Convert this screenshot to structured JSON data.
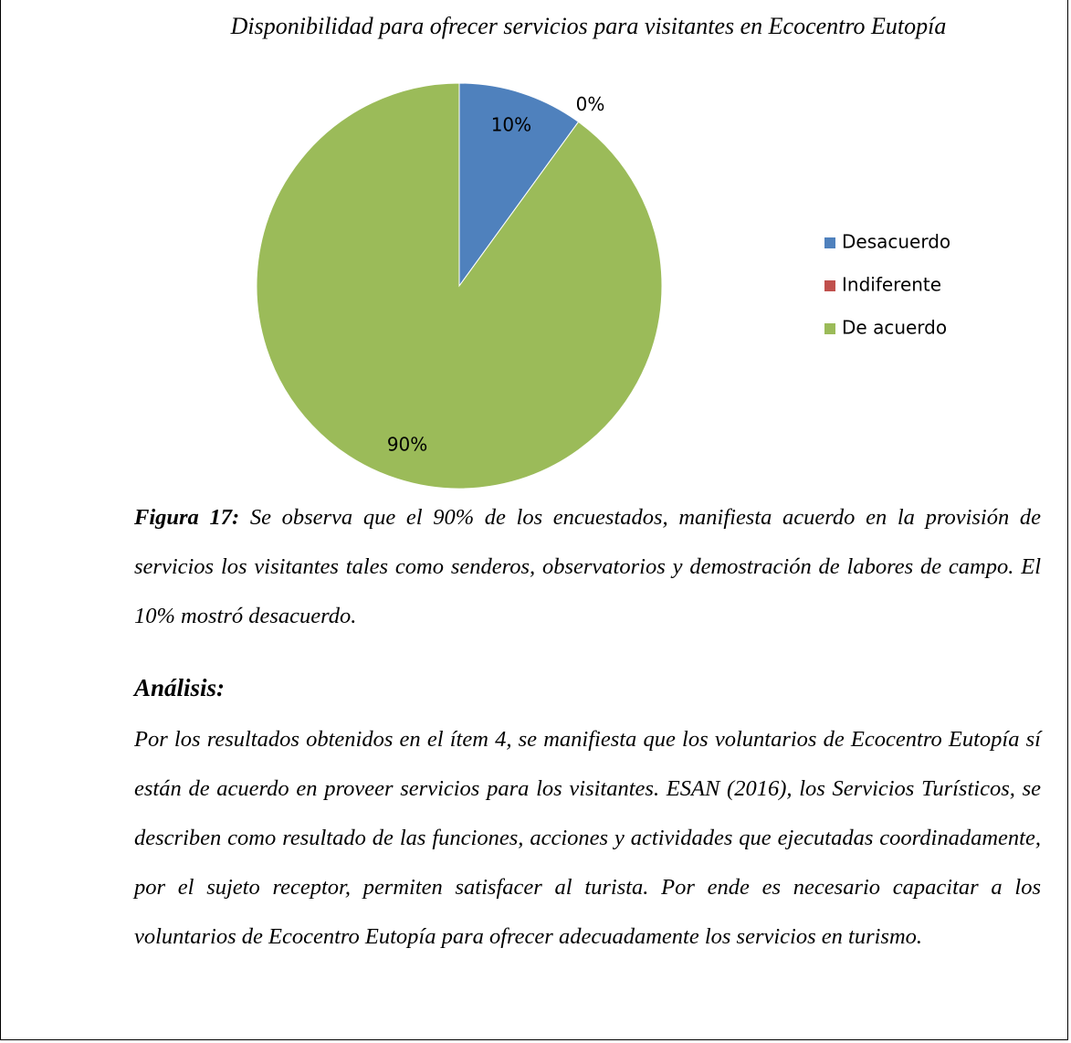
{
  "title": "Disponibilidad para ofrecer servicios para visitantes en Ecocentro Eutopía",
  "chart_data": {
    "type": "pie",
    "categories": [
      "Desacuerdo",
      "Indiferente",
      "De acuerdo"
    ],
    "values": [
      10,
      0,
      90
    ],
    "value_labels": [
      "10%",
      "0%",
      "90%"
    ],
    "colors": [
      "#4f81bd",
      "#c0504d",
      "#9bbb59"
    ]
  },
  "caption": {
    "label": "Figura 17:",
    "text": "Se observa que el 90% de los encuestados, manifiesta acuerdo en  la provisión de servicios  los visitantes tales como senderos, observatorios y demostración de labores de campo. El 10% mostró desacuerdo."
  },
  "analysis": {
    "heading": "Análisis:",
    "text": "Por los resultados obtenidos en el ítem 4, se manifiesta que los voluntarios de Ecocentro Eutopía sí están de acuerdo en proveer servicios para los visitantes. ESAN (2016), los Servicios Turísticos, se describen como resultado de las funciones, acciones y actividades que ejecutadas coordinadamente, por el sujeto receptor, permiten satisfacer al turista. Por ende es necesario capacitar a los voluntarios de Ecocentro Eutopía para ofrecer adecuadamente los servicios en turismo."
  }
}
